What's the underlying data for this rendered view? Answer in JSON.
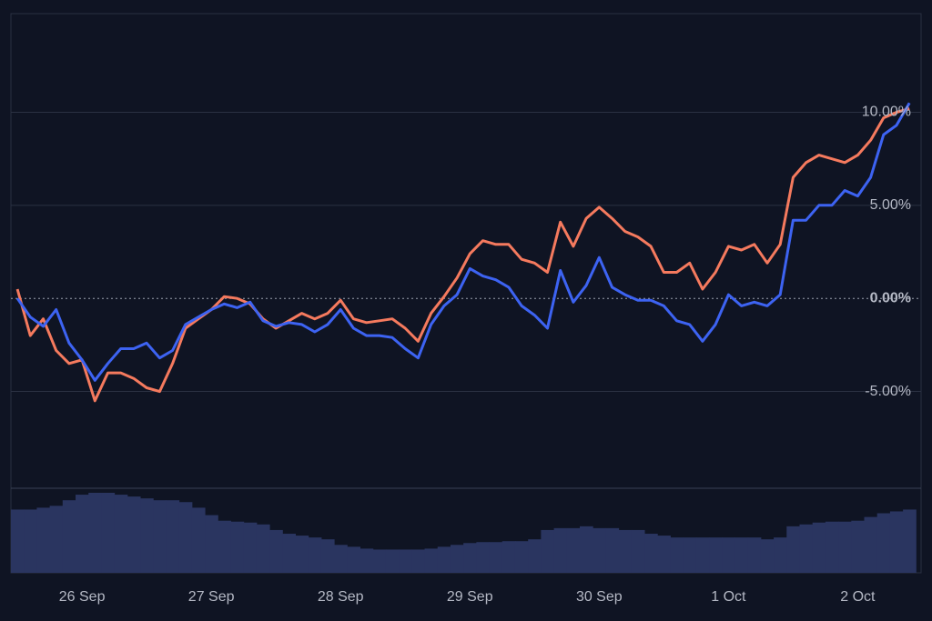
{
  "chart_data": {
    "type": "line",
    "x": [
      -0.5,
      -0.4,
      -0.3,
      -0.2,
      -0.1,
      0,
      0.1,
      0.2,
      0.3,
      0.4,
      0.5,
      0.6,
      0.7,
      0.8,
      0.9,
      1,
      1.1,
      1.2,
      1.3,
      1.4,
      1.5,
      1.6,
      1.7,
      1.8,
      1.9,
      2,
      2.1,
      2.2,
      2.3,
      2.4,
      2.5,
      2.6,
      2.7,
      2.8,
      2.9,
      3,
      3.1,
      3.2,
      3.3,
      3.4,
      3.5,
      3.6,
      3.7,
      3.8,
      3.9,
      4,
      4.1,
      4.2,
      4.3,
      4.4,
      4.5,
      4.6,
      4.7,
      4.8,
      4.9,
      5,
      5.1,
      5.2,
      5.3,
      5.4,
      5.5,
      5.6,
      5.7,
      5.8,
      5.9,
      6,
      6.1,
      6.2,
      6.3,
      6.4
    ],
    "series": [
      {
        "color": "#f57a5e",
        "values": [
          0.5,
          -2.0,
          -1.1,
          -2.8,
          -3.5,
          -3.3,
          -5.5,
          -4.0,
          -4.0,
          -4.3,
          -4.8,
          -5.0,
          -3.5,
          -1.6,
          -1.1,
          -0.6,
          0.1,
          0,
          -0.3,
          -1.1,
          -1.6,
          -1.2,
          -0.8,
          -1.1,
          -0.8,
          -0.1,
          -1.1,
          -1.3,
          -1.2,
          -1.1,
          -1.6,
          -2.3,
          -0.8,
          0.1,
          1.1,
          2.4,
          3.1,
          2.9,
          2.9,
          2.1,
          1.9,
          1.4,
          4.1,
          2.8,
          4.3,
          4.9,
          4.3,
          3.6,
          3.3,
          2.8,
          1.4,
          1.4,
          1.9,
          0.5,
          1.4,
          2.8,
          2.6,
          2.9,
          1.9,
          2.9,
          6.5,
          7.3,
          7.7,
          7.5,
          7.3,
          7.7,
          8.5,
          9.7,
          10.0,
          10.2
        ]
      },
      {
        "color": "#3d63f2",
        "values": [
          0.0,
          -1.0,
          -1.5,
          -0.6,
          -2.4,
          -3.3,
          -4.4,
          -3.5,
          -2.7,
          -2.7,
          -2.4,
          -3.2,
          -2.8,
          -1.4,
          -1.0,
          -0.6,
          -0.3,
          -0.5,
          -0.2,
          -1.2,
          -1.5,
          -1.3,
          -1.4,
          -1.8,
          -1.4,
          -0.6,
          -1.6,
          -2.0,
          -2.0,
          -2.1,
          -2.7,
          -3.2,
          -1.4,
          -0.4,
          0.2,
          1.6,
          1.2,
          1.0,
          0.6,
          -0.4,
          -0.9,
          -1.6,
          1.5,
          -0.2,
          0.7,
          2.2,
          0.6,
          0.2,
          -0.1,
          -0.1,
          -0.4,
          -1.2,
          -1.4,
          -2.3,
          -1.4,
          0.2,
          -0.4,
          -0.2,
          -0.4,
          0.2,
          4.2,
          4.2,
          5.0,
          5.0,
          5.8,
          5.5,
          6.5,
          8.8,
          9.3,
          10.5
        ]
      }
    ],
    "volume": {
      "color": "#2a3560",
      "values": [
        68,
        68,
        70,
        72,
        78,
        84,
        86,
        86,
        84,
        82,
        80,
        78,
        78,
        76,
        70,
        62,
        56,
        55,
        54,
        52,
        46,
        42,
        40,
        38,
        36,
        30,
        28,
        26,
        25,
        25,
        25,
        25,
        26,
        28,
        30,
        32,
        33,
        33,
        34,
        34,
        36,
        46,
        48,
        48,
        50,
        48,
        48,
        46,
        46,
        42,
        40,
        38,
        38,
        38,
        38,
        38,
        38,
        38,
        36,
        38,
        50,
        52,
        54,
        55,
        55,
        56,
        60,
        64,
        66,
        68
      ]
    },
    "xlim": [
      -0.55,
      6.49
    ],
    "xticks": [
      {
        "value": 0,
        "label": "26 Sep"
      },
      {
        "value": 1,
        "label": "27 Sep"
      },
      {
        "value": 2,
        "label": "28 Sep"
      },
      {
        "value": 3,
        "label": "29 Sep"
      },
      {
        "value": 4,
        "label": "30 Sep"
      },
      {
        "value": 5,
        "label": "1 Oct"
      },
      {
        "value": 6,
        "label": "2 Oct"
      }
    ],
    "ylim": [
      -10.2,
      15.3
    ],
    "yticks": [
      {
        "value": 10,
        "label": "10.00%"
      },
      {
        "value": 5,
        "label": "5.00%"
      },
      {
        "value": 0,
        "label": "0.00%"
      },
      {
        "value": -5,
        "label": "-5.00%"
      }
    ],
    "grid": true
  }
}
